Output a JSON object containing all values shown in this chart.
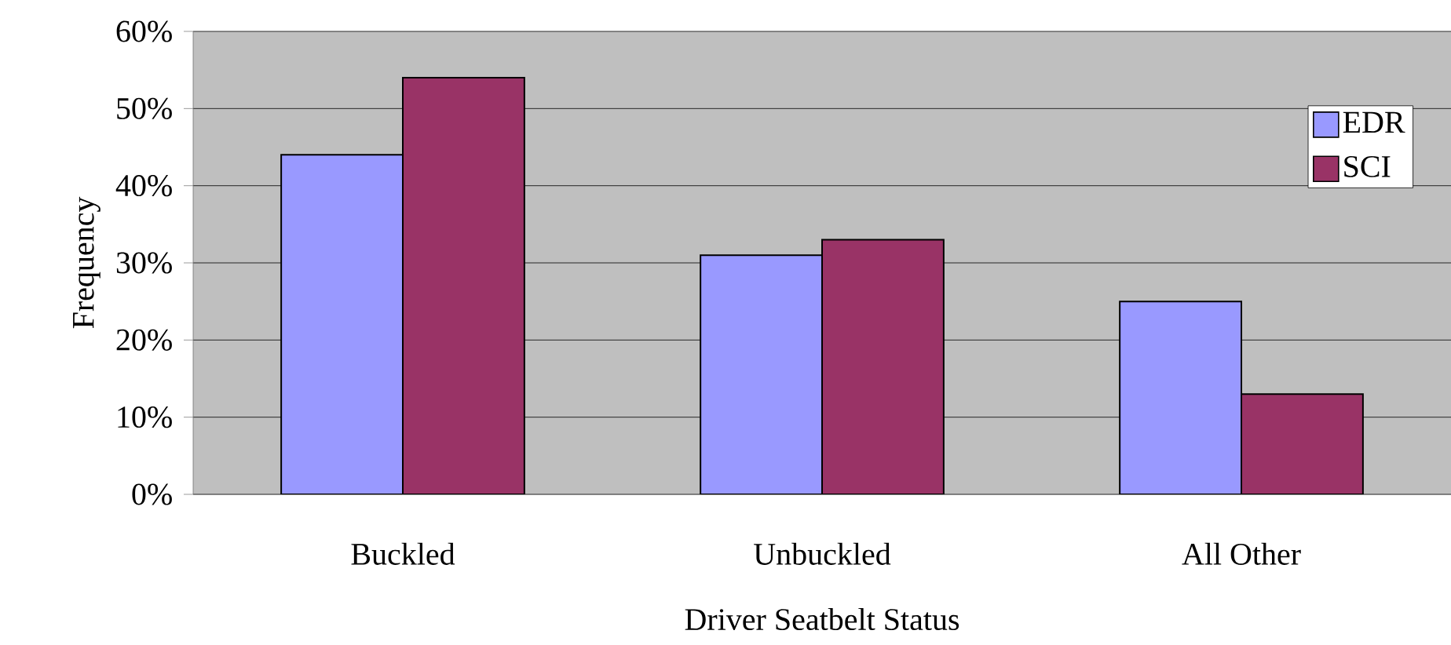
{
  "chart_data": {
    "type": "bar",
    "xlabel": "Driver Seatbelt Status",
    "ylabel": "Frequency",
    "categories": [
      "Buckled",
      "Unbuckled",
      "All Other"
    ],
    "series": [
      {
        "name": "EDR",
        "color": "#9999ff",
        "values": [
          44,
          31,
          25
        ]
      },
      {
        "name": "SCI",
        "color": "#993366",
        "values": [
          54,
          33,
          13
        ]
      }
    ],
    "ylim": [
      0,
      60
    ],
    "yticks": [
      {
        "value": 0,
        "label": "0%"
      },
      {
        "value": 10,
        "label": "10%"
      },
      {
        "value": 20,
        "label": "20%"
      },
      {
        "value": 30,
        "label": "30%"
      },
      {
        "value": 40,
        "label": "40%"
      },
      {
        "value": 50,
        "label": "50%"
      },
      {
        "value": 60,
        "label": "60%"
      }
    ],
    "grid": "y",
    "legend": "top right"
  }
}
